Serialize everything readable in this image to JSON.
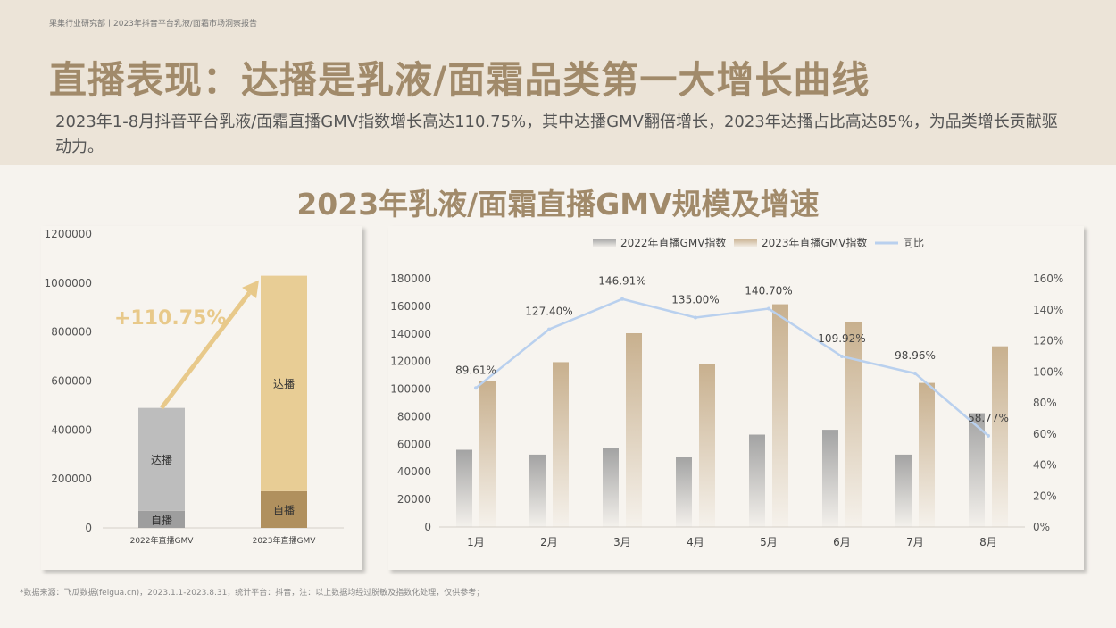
{
  "header": {
    "topline": "果集行业研究部丨2023年抖音平台乳液/面霜市场洞察报告",
    "title": "直播表现：达播是乳液/面霜品类第一大增长曲线",
    "description": "2023年1-8月抖音平台乳液/面霜直播GMV指数增长高达110.75%，其中达播GMV翻倍增长，2023年达播占比高达85%，为品类增长贡献驱动力。"
  },
  "chart_title": "2023年乳液/面霜直播GMV规模及增速",
  "footer": "*数据来源：飞瓜数据(feigua.cn)，2023.1.1-2023.8.31，统计平台：抖音，注：以上数据均经过脱敏及指数化处理，仅供参考；",
  "colors": {
    "gray_bar": "#a3a3a3",
    "gold_bar": "#c8b08e",
    "line": "#b9d0ee",
    "accent_gold": "#e8c98a",
    "self_2022": "#9e9e9e",
    "live_2022": "#bdbdbd",
    "self_2023": "#b0905e",
    "live_2023": "#e8cd95"
  },
  "chart_data": [
    {
      "type": "bar",
      "stacked": true,
      "categories": [
        "2022年直播GMV",
        "2023年直播GMV"
      ],
      "series": [
        {
          "name": "自播",
          "values": [
            70000,
            150000
          ]
        },
        {
          "name": "达播",
          "values": [
            420000,
            880000
          ]
        }
      ],
      "ylim": [
        0,
        1200000
      ],
      "yticks": [
        "0",
        "200000",
        "400000",
        "600000",
        "800000",
        "1000000",
        "1200000"
      ],
      "annotation": "+110.75%"
    },
    {
      "type": "bar",
      "categories": [
        "1月",
        "2月",
        "3月",
        "4月",
        "5月",
        "6月",
        "7月",
        "8月"
      ],
      "series": [
        {
          "name": "2022年直播GMV指数",
          "values": [
            56000,
            52500,
            57000,
            50500,
            67000,
            70500,
            52500,
            82500
          ]
        },
        {
          "name": "2023年直播GMV指数",
          "values": [
            106000,
            119500,
            140500,
            118000,
            161500,
            148500,
            104500,
            131000
          ]
        },
        {
          "name": "同比",
          "type": "line",
          "axis": "right",
          "values": [
            89.61,
            127.4,
            146.91,
            135.0,
            140.7,
            109.92,
            98.96,
            58.77
          ],
          "labels": [
            "89.61%",
            "127.40%",
            "146.91%",
            "135.00%",
            "140.70%",
            "109.92%",
            "98.96%",
            "58.77%"
          ]
        }
      ],
      "ylim": [
        0,
        180000
      ],
      "yticks": [
        "0",
        "20000",
        "40000",
        "60000",
        "80000",
        "100000",
        "120000",
        "140000",
        "160000",
        "180000"
      ],
      "y2lim": [
        0,
        160
      ],
      "y2ticks": [
        "0%",
        "20%",
        "40%",
        "60%",
        "80%",
        "100%",
        "120%",
        "140%",
        "160%"
      ],
      "legend_position": "top"
    }
  ]
}
